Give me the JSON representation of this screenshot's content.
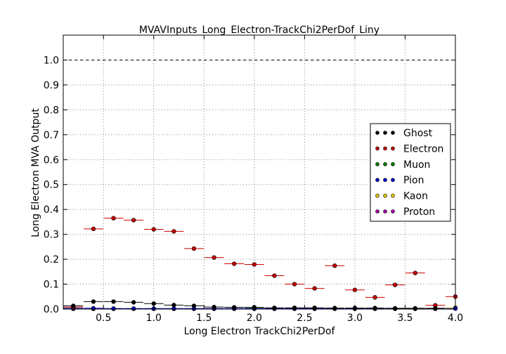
{
  "chart_data": {
    "type": "scatter",
    "title": "MVAVInputs_Long_Electron-TrackChi2PerDof_Liny",
    "xlabel": "Long Electron TrackChi2PerDof",
    "ylabel": "Long Electron MVA Output",
    "xlim": [
      0.1,
      4.0
    ],
    "ylim": [
      0.0,
      1.1
    ],
    "x_ticks": [
      "0.5",
      "1.0",
      "1.5",
      "2.0",
      "2.5",
      "3.0",
      "3.5",
      "4.0"
    ],
    "y_ticks": [
      "0.0",
      "0.1",
      "0.2",
      "0.3",
      "0.4",
      "0.5",
      "0.6",
      "0.7",
      "0.8",
      "0.9",
      "1.0"
    ],
    "reference_line": 1.0,
    "grid": true,
    "legend_position": "center-right",
    "bin_width": 0.195,
    "series": [
      {
        "name": "Ghost",
        "color": "#000000",
        "x": [
          0.2,
          0.4,
          0.6,
          0.8,
          1.0,
          1.2,
          1.4,
          1.6,
          1.8,
          2.0,
          2.2,
          2.4,
          2.6,
          2.8,
          3.0,
          3.2,
          3.4,
          3.6,
          3.8
        ],
        "y": [
          0.013,
          0.03,
          0.03,
          0.027,
          0.022,
          0.016,
          0.013,
          0.008,
          0.007,
          0.006,
          0.005,
          0.005,
          0.005,
          0.004,
          0.004,
          0.004,
          0.003,
          0.003,
          0.003
        ]
      },
      {
        "name": "Electron",
        "color": "#cc0000",
        "x": [
          0.2,
          0.4,
          0.6,
          0.8,
          1.0,
          1.2,
          1.4,
          1.6,
          1.8,
          2.0,
          2.2,
          2.4,
          2.6,
          2.8,
          3.0,
          3.2,
          3.4,
          3.6,
          3.8,
          4.0
        ],
        "y": [
          0.008,
          0.322,
          0.365,
          0.357,
          0.32,
          0.312,
          0.243,
          0.207,
          0.182,
          0.179,
          0.134,
          0.1,
          0.083,
          0.174,
          0.077,
          0.047,
          0.097,
          0.145,
          0.015,
          0.05
        ]
      },
      {
        "name": "Muon",
        "color": "#008000",
        "x": [
          2.0
        ],
        "y": [
          0.007
        ]
      },
      {
        "name": "Pion",
        "color": "#0000cc",
        "x": [
          0.2,
          0.4,
          0.6,
          0.8,
          1.0,
          1.2,
          1.4,
          1.6,
          1.8,
          2.0,
          2.2,
          2.4,
          2.6,
          2.8,
          3.0,
          3.2,
          3.4,
          3.6,
          3.8,
          4.0
        ],
        "y": [
          0.003,
          0.003,
          0.002,
          0.002,
          0.002,
          0.002,
          0.002,
          0.002,
          0.002,
          0.002,
          0.002,
          0.002,
          0.002,
          0.002,
          0.002,
          0.002,
          0.002,
          0.002,
          0.002,
          0.002
        ]
      },
      {
        "name": "Kaon",
        "color": "#e6c800",
        "x": [
          0.2,
          4.0
        ],
        "y": [
          0.004,
          0.005
        ]
      },
      {
        "name": "Proton",
        "color": "#aa00aa",
        "x": [
          0.2,
          0.4,
          0.6,
          0.8,
          1.0,
          1.2,
          1.4,
          1.6,
          1.8,
          2.0,
          2.2,
          2.4,
          2.6,
          2.8,
          3.0,
          3.2,
          3.4,
          3.6,
          3.8
        ],
        "y": [
          0.001,
          0.001,
          0.001,
          0.001,
          0.001,
          0.001,
          0.001,
          0.001,
          0.001,
          0.001,
          0.001,
          0.001,
          0.001,
          0.001,
          0.001,
          0.001,
          0.001,
          0.001,
          0.001
        ]
      }
    ]
  }
}
